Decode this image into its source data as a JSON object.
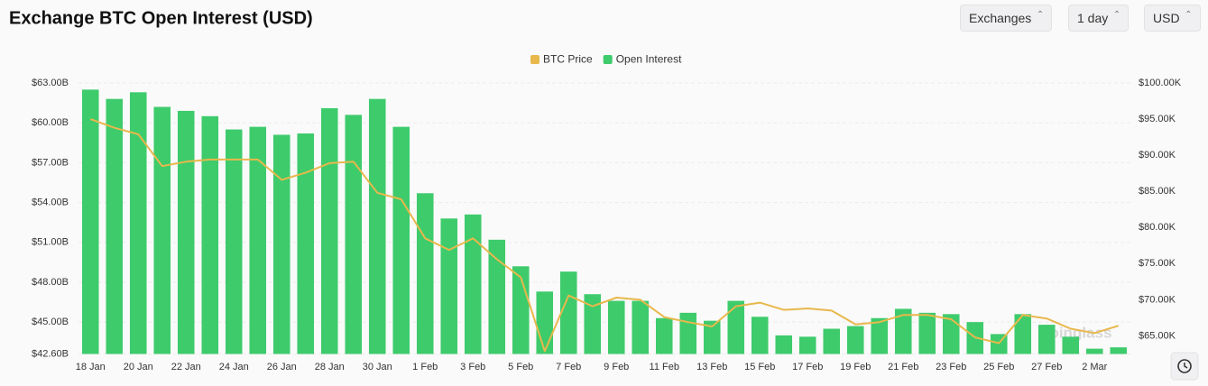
{
  "chart_data": {
    "type": "bar",
    "title": "Exchange BTC Open Interest (USD)",
    "controls": [
      "Exchanges",
      "1 day",
      "USD"
    ],
    "watermark": "coinglass",
    "categories": [
      "18 Jan",
      null,
      "20 Jan",
      null,
      "22 Jan",
      null,
      "24 Jan",
      null,
      "26 Jan",
      null,
      "28 Jan",
      null,
      "30 Jan",
      null,
      "1 Feb",
      null,
      "3 Feb",
      null,
      "5 Feb",
      null,
      "7 Feb",
      null,
      "9 Feb",
      null,
      "11 Feb",
      null,
      "13 Feb",
      null,
      "15 Feb",
      null,
      "17 Feb",
      null,
      "19 Feb",
      null,
      "21 Feb",
      null,
      "23 Feb",
      null,
      "25 Feb",
      null,
      "27 Feb",
      null,
      "2 Mar",
      null
    ],
    "series": [
      {
        "name": "BTC Price",
        "type": "line",
        "axis": "y2",
        "color": "#e8b84c",
        "values": [
          95.0,
          93.8,
          92.9,
          88.5,
          89.1,
          89.4,
          89.4,
          89.4,
          86.6,
          87.6,
          88.9,
          89.1,
          84.8,
          83.9,
          78.5,
          76.9,
          78.5,
          75.6,
          73.1,
          62.9,
          70.6,
          69.1,
          70.3,
          70.0,
          67.6,
          66.9,
          66.3,
          69.1,
          69.6,
          68.6,
          68.8,
          68.5,
          66.6,
          66.9,
          67.9,
          67.9,
          67.3,
          64.8,
          64.0,
          67.9,
          67.4,
          66.0,
          65.4,
          66.4
        ]
      },
      {
        "name": "Open Interest",
        "type": "bar",
        "color": "#3ecb6c",
        "values": [
          62.5,
          61.8,
          62.3,
          61.2,
          60.9,
          60.5,
          59.5,
          59.7,
          59.1,
          59.2,
          61.1,
          60.6,
          61.8,
          59.7,
          54.7,
          52.8,
          53.1,
          51.2,
          49.2,
          47.3,
          48.8,
          47.1,
          46.6,
          46.6,
          45.3,
          45.7,
          45.1,
          46.6,
          45.4,
          44.0,
          43.9,
          44.5,
          44.7,
          45.3,
          46.0,
          45.7,
          45.6,
          45.0,
          44.1,
          45.6,
          44.8,
          43.9,
          43.0,
          43.1
        ]
      }
    ],
    "ylim": [
      42.6,
      63.0
    ],
    "yticks": [
      {
        "value": 42.6,
        "label": "$42.60B"
      },
      {
        "value": 45,
        "label": "$45.00B"
      },
      {
        "value": 48,
        "label": "$48.00B"
      },
      {
        "value": 51,
        "label": "$51.00B"
      },
      {
        "value": 54,
        "label": "$54.00B"
      },
      {
        "value": 57,
        "label": "$57.00B"
      },
      {
        "value": 60,
        "label": "$60.00B"
      },
      {
        "value": 63,
        "label": "$63.00B"
      }
    ],
    "y2lim": [
      62.5,
      100
    ],
    "y2ticks": [
      {
        "value": 65,
        "label": "$65.00K"
      },
      {
        "value": 70,
        "label": "$70.00K"
      },
      {
        "value": 75,
        "label": "$75.00K"
      },
      {
        "value": 80,
        "label": "$80.00K"
      },
      {
        "value": 85,
        "label": "$85.00K"
      },
      {
        "value": 90,
        "label": "$90.00K"
      },
      {
        "value": 95,
        "label": "$95.00K"
      },
      {
        "value": 100,
        "label": "$100.00K"
      }
    ],
    "grid": true,
    "legend": "top"
  }
}
